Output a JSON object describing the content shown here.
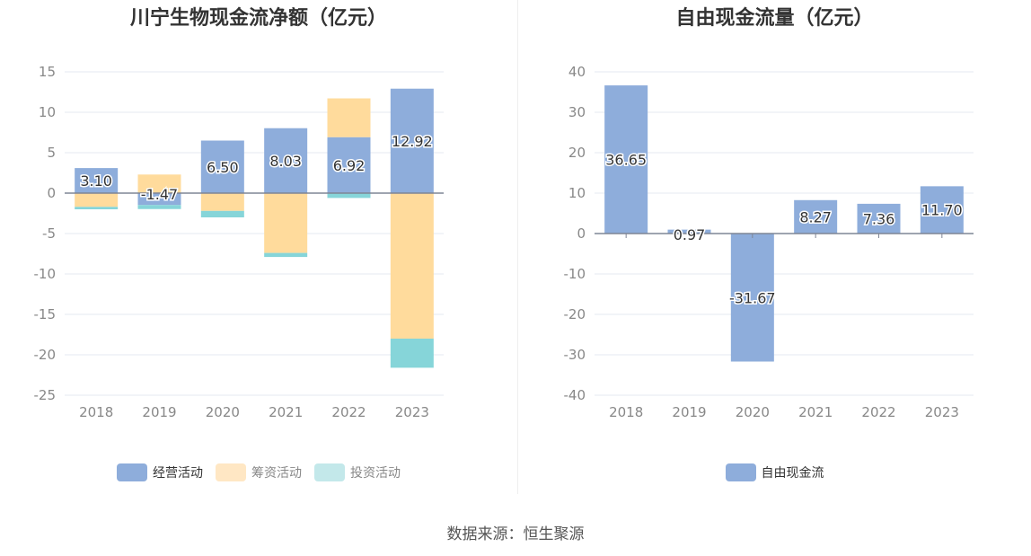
{
  "source_text": "数据来源：恒生聚源",
  "colors": {
    "operating": "#8eaddb",
    "financing": "#ffdb9c",
    "investing": "#86d5d9",
    "investing_legend": "#c3e8ea",
    "financing_legend": "#ffe7c4",
    "fcf": "#8eaddb",
    "grid": "#e6e9f0",
    "axis": "#999999",
    "zero_line": "#7f8595",
    "tick_text": "#888888",
    "label_text": "#333333"
  },
  "chart_data": [
    {
      "type": "bar",
      "stacked": true,
      "title": "川宁生物现金流净额（亿元）",
      "categories": [
        "2018",
        "2019",
        "2020",
        "2021",
        "2022",
        "2023"
      ],
      "ylim": [
        -25,
        15
      ],
      "yticks": [
        15,
        10,
        5,
        0,
        -5,
        -10,
        -15,
        -20,
        -25
      ],
      "grid": true,
      "legend_position": "bottom",
      "series": [
        {
          "name": "经营活动",
          "color_key": "operating",
          "values": [
            3.1,
            -1.47,
            6.5,
            8.03,
            6.92,
            12.92
          ],
          "show_labels": true
        },
        {
          "name": "筹资活动",
          "color_key": "financing",
          "values": [
            -1.7,
            2.3,
            -2.2,
            -7.4,
            4.8,
            -18.0
          ],
          "show_labels": false
        },
        {
          "name": "投资活动",
          "color_key": "investing",
          "values": [
            -0.3,
            -0.5,
            -0.8,
            -0.5,
            -0.6,
            -3.6
          ],
          "show_labels": false
        }
      ],
      "data_labels": [
        "3.10",
        "-1.47",
        "6.50",
        "8.03",
        "6.92",
        "12.92"
      ]
    },
    {
      "type": "bar",
      "title": "自由现金流量（亿元）",
      "categories": [
        "2018",
        "2019",
        "2020",
        "2021",
        "2022",
        "2023"
      ],
      "ylim": [
        -40,
        40
      ],
      "yticks": [
        40,
        30,
        20,
        10,
        0,
        -10,
        -20,
        -30,
        -40
      ],
      "grid": true,
      "legend_position": "bottom",
      "series": [
        {
          "name": "自由现金流",
          "color_key": "fcf",
          "values": [
            36.65,
            0.97,
            -31.67,
            8.27,
            7.36,
            11.7
          ],
          "show_labels": true
        }
      ],
      "data_labels": [
        "36.65",
        "0.97",
        "-31.67",
        "8.27",
        "7.36",
        "11.70"
      ]
    }
  ]
}
